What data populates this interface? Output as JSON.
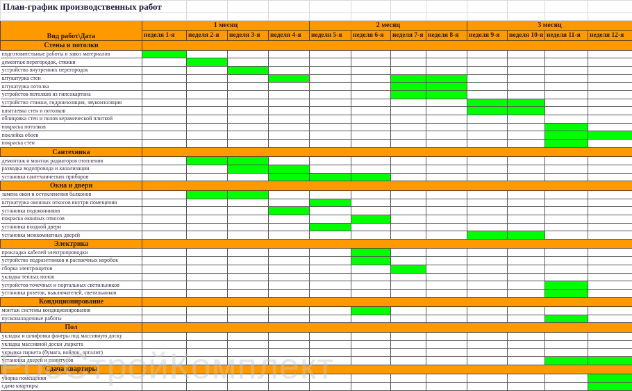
{
  "title": "План-график производственных работ",
  "header": {
    "column_label": "Вид работ\\Дата",
    "months": [
      "1 месяц",
      "2 месяц",
      "3 месяц"
    ],
    "weeks": [
      "неделя 1-я",
      "неделя 2-я",
      "неделя 3-я",
      "неделя 4-я",
      "неделя 5-я",
      "неделя 6-я",
      "неделя 7-я",
      "неделя 8-я",
      "неделя 9-я",
      "неделя 10-я",
      "неделя 11-я",
      "неделя 12-я"
    ]
  },
  "colors": {
    "header": "#ff9900",
    "active": "#00ff00"
  },
  "sections": [
    {
      "name": "Стены и потолки",
      "items": [
        {
          "label": "подготовительные работы и завоз материалов",
          "weeks": [
            1
          ]
        },
        {
          "label": "демонтаж перегородок, стяжки",
          "weeks": [
            2
          ]
        },
        {
          "label": "устройство внутренних перегородок",
          "weeks": [
            3
          ]
        },
        {
          "label": "штукатурка стен",
          "weeks": [
            4,
            7,
            8
          ]
        },
        {
          "label": "штукатурка потолка",
          "weeks": [
            7,
            8
          ]
        },
        {
          "label": "устройстов потолков из гипсокартона",
          "weeks": [
            7,
            8
          ]
        },
        {
          "label": "устройство стяжки, гидроизоляция, звукоизоляция",
          "weeks": [
            9,
            10
          ]
        },
        {
          "label": "шпатлевка стен и потолков",
          "weeks": [
            9,
            10
          ]
        },
        {
          "label": "облицовка стен и полов керамической плиткой",
          "weeks": []
        },
        {
          "label": "покраска потолков",
          "weeks": [
            11
          ]
        },
        {
          "label": "поклейка обоев",
          "weeks": [
            11,
            12
          ]
        },
        {
          "label": "покраска стен",
          "weeks": [
            11
          ]
        }
      ]
    },
    {
      "name": "Сантехника",
      "items": [
        {
          "label": "демонтаж и монтаж радиаторов отопления",
          "weeks": [
            2,
            3
          ]
        },
        {
          "label": "разводка водопровода и канализации",
          "weeks": [
            3,
            4
          ]
        },
        {
          "label": "установка сантехнических приборов",
          "weeks": [
            4,
            5,
            6
          ]
        }
      ]
    },
    {
      "name": "Окна и двери",
      "items": [
        {
          "label": "замена окон и остекленения балконов",
          "weeks": [
            2,
            3
          ]
        },
        {
          "label": "штукатурка оконных откосов внутри помещения",
          "weeks": [
            5
          ]
        },
        {
          "label": "установка подоконников",
          "weeks": [
            4
          ]
        },
        {
          "label": "покраска оконных откосов",
          "weeks": [
            6
          ]
        },
        {
          "label": "установка входной двери",
          "weeks": [
            5
          ]
        },
        {
          "label": "установка межкомнатных дверей",
          "weeks": [
            9,
            10
          ]
        }
      ]
    },
    {
      "name": "Электрика",
      "items": [
        {
          "label": "прокладка кабелей электропроводки",
          "weeks": [
            6
          ]
        },
        {
          "label": "устройство подразетников и распаечных коробок",
          "weeks": [
            6
          ]
        },
        {
          "label": "сборка электрощитов",
          "weeks": [
            7
          ]
        },
        {
          "label": "укладка теплых полов",
          "weeks": []
        },
        {
          "label": "устройстов точечных и портальных светильников",
          "weeks": [
            11
          ]
        },
        {
          "label": "установка розеток, выключателей, светильников",
          "weeks": [
            11
          ]
        }
      ]
    },
    {
      "name": "Кондиционирование",
      "items": [
        {
          "label": "монтаж системы кондиционирования",
          "weeks": [
            6
          ]
        },
        {
          "label": "пусконаладочные работы",
          "weeks": [
            11
          ]
        }
      ]
    },
    {
      "name": "Пол",
      "items": [
        {
          "label": "укладка и шлифовка фанеры под массивную доску",
          "weeks": []
        },
        {
          "label": "укладка массивной доски ,паркета",
          "weeks": []
        },
        {
          "label": "укрывка паркета (бумага, войлок, оргалит)",
          "weeks": []
        },
        {
          "label": "установка дверей и плинтусов",
          "weeks": [
            11,
            12
          ]
        }
      ]
    },
    {
      "name": "Сдача квартиры",
      "items": [
        {
          "label": "уборка помещения",
          "weeks": [
            12
          ]
        },
        {
          "label": "сдача квартиры",
          "weeks": [
            12
          ]
        }
      ]
    }
  ],
  "watermark": "РосСтройКомплект"
}
